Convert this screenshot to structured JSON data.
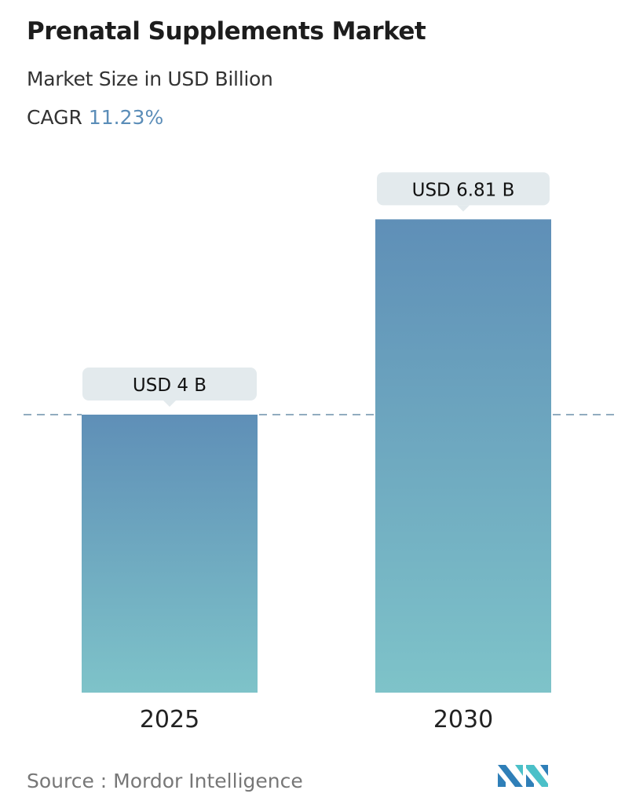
{
  "header": {
    "title": "Prenatal Supplements Market",
    "subtitle": "Market Size in USD Billion",
    "cagr_label": "CAGR",
    "cagr_value": "11.23%"
  },
  "chart_data": {
    "type": "bar",
    "categories": [
      "2025",
      "2030"
    ],
    "values": [
      4,
      6.81
    ],
    "data_labels": [
      "USD 4 B",
      "USD 6.81 B"
    ],
    "ylabel": "",
    "xlabel": "",
    "ylim": [
      0,
      7.5
    ],
    "grid": false,
    "reference_line": {
      "value": 4,
      "style": "dashed"
    },
    "colors": {
      "bar_top": "#5f8fb7",
      "bar_bottom": "#7ec3c9",
      "label_bg": "#e3eaed",
      "ref_line": "#4f7a99"
    }
  },
  "footer": {
    "source": "Source :  Mordor Intelligence"
  }
}
